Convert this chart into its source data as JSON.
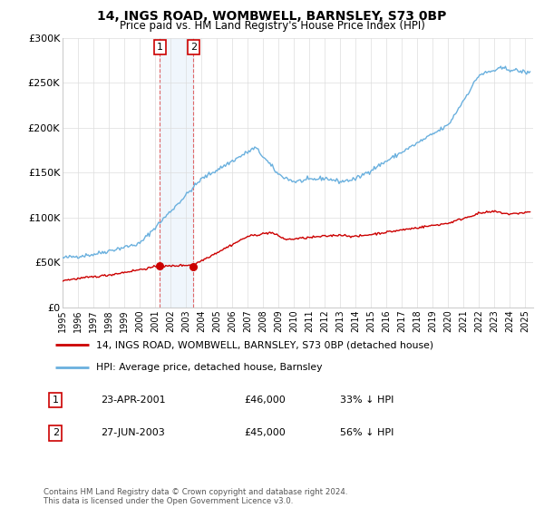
{
  "title": "14, INGS ROAD, WOMBWELL, BARNSLEY, S73 0BP",
  "subtitle": "Price paid vs. HM Land Registry's House Price Index (HPI)",
  "ylim": [
    0,
    300000
  ],
  "yticks": [
    0,
    50000,
    100000,
    150000,
    200000,
    250000,
    300000
  ],
  "ytick_labels": [
    "£0",
    "£50K",
    "£100K",
    "£150K",
    "£200K",
    "£250K",
    "£300K"
  ],
  "sale1_date": 2001.31,
  "sale1_price": 46000,
  "sale1_label": "1",
  "sale1_text": "23-APR-2001",
  "sale1_amount": "£46,000",
  "sale1_hpi": "33% ↓ HPI",
  "sale2_date": 2003.49,
  "sale2_price": 45000,
  "sale2_label": "2",
  "sale2_text": "27-JUN-2003",
  "sale2_amount": "£45,000",
  "sale2_hpi": "56% ↓ HPI",
  "hpi_color": "#6ab0de",
  "price_color": "#cc0000",
  "marker_color": "#cc0000",
  "shade_color": "#daeaf8",
  "legend_label_price": "14, INGS ROAD, WOMBWELL, BARNSLEY, S73 0BP (detached house)",
  "legend_label_hpi": "HPI: Average price, detached house, Barnsley",
  "footnote": "Contains HM Land Registry data © Crown copyright and database right 2024.\nThis data is licensed under the Open Government Licence v3.0.",
  "xmin": 1995.0,
  "xmax": 2025.5
}
